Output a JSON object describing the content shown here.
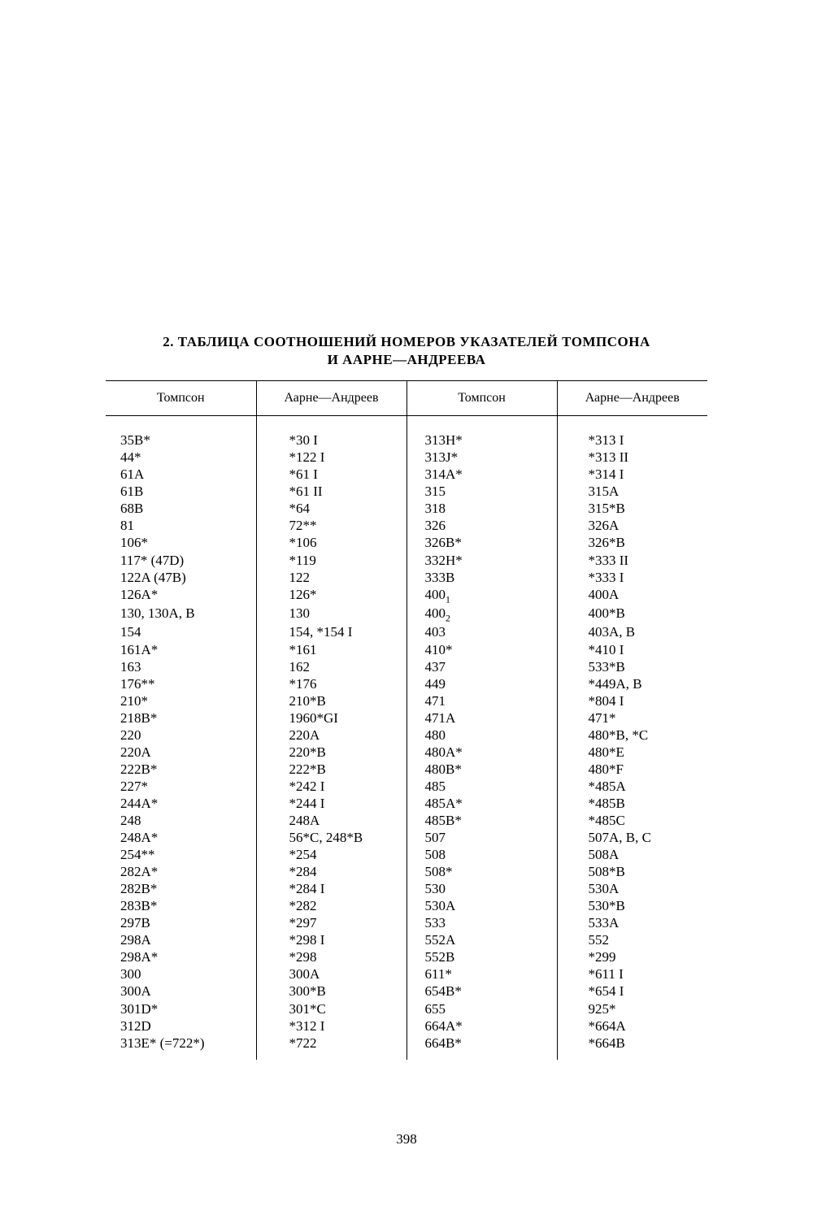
{
  "title_line1": "2.  ТАБЛИЦА  СООТНОШЕНИЙ  НОМЕРОВ  УКАЗАТЕЛЕЙ  ТОМПСОНА",
  "title_line2": "И  ААРНЕ—АНДРЕЕВА",
  "headers": {
    "col1": "Томпсон",
    "col2": "Аарне—Андреев",
    "col3": "Томпсон",
    "col4": "Аарне—Андреев"
  },
  "rows": [
    {
      "t1": "35B*",
      "a1": "*30 I",
      "t2": "313H*",
      "a2": "*313 I"
    },
    {
      "t1": "44*",
      "a1": "*122 I",
      "t2": "313J*",
      "a2": "*313 II"
    },
    {
      "t1": "61A",
      "a1": "*61 I",
      "t2": "314A*",
      "a2": "*314 I"
    },
    {
      "t1": "61B",
      "a1": "*61 II",
      "t2": "315",
      "a2": "315A"
    },
    {
      "t1": "68B",
      "a1": "*64",
      "t2": "318",
      "a2": "315*B"
    },
    {
      "t1": "81",
      "a1": "72**",
      "t2": "326",
      "a2": "326A"
    },
    {
      "t1": "106*",
      "a1": "*106",
      "t2": "326B*",
      "a2": "326*B"
    },
    {
      "t1": "117* (47D)",
      "a1": "*119",
      "t2": "332H*",
      "a2": "*333 II"
    },
    {
      "t1": "122A (47B)",
      "a1": "122",
      "t2": "333B",
      "a2": "*333 I"
    },
    {
      "t1": "126A*",
      "a1": "126*",
      "t2": "400₁",
      "a2": "400A"
    },
    {
      "t1": "130, 130A, B",
      "a1": "130",
      "t2": "400₂",
      "a2": "400*B"
    },
    {
      "t1": "154",
      "a1": "154, *154 I",
      "t2": "403",
      "a2": "403A, B"
    },
    {
      "t1": "161A*",
      "a1": "*161",
      "t2": "410*",
      "a2": "*410 I"
    },
    {
      "t1": "163",
      "a1": "162",
      "t2": "437",
      "a2": "533*B"
    },
    {
      "t1": "176**",
      "a1": "*176",
      "t2": "449",
      "a2": "*449A, B"
    },
    {
      "t1": "210*",
      "a1": "210*B",
      "t2": "471",
      "a2": "*804 I"
    },
    {
      "t1": "218B*",
      "a1": "1960*GI",
      "t2": "471A",
      "a2": "471*"
    },
    {
      "t1": "220",
      "a1": "220A",
      "t2": "480",
      "a2": "480*B, *C"
    },
    {
      "t1": "220A",
      "a1": "220*B",
      "t2": "480A*",
      "a2": "480*E"
    },
    {
      "t1": "222B*",
      "a1": "222*B",
      "t2": "480B*",
      "a2": "480*F"
    },
    {
      "t1": "227*",
      "a1": "*242 I",
      "t2": "485",
      "a2": "*485A"
    },
    {
      "t1": "244A*",
      "a1": "*244 I",
      "t2": "485A*",
      "a2": "*485B"
    },
    {
      "t1": "248",
      "a1": "248A",
      "t2": "485B*",
      "a2": "*485C"
    },
    {
      "t1": "248A*",
      "a1": "56*C, 248*B",
      "t2": "507",
      "a2": "507A, B, C"
    },
    {
      "t1": "254**",
      "a1": "*254",
      "t2": "508",
      "a2": "508A"
    },
    {
      "t1": "282A*",
      "a1": "*284",
      "t2": "508*",
      "a2": "508*B"
    },
    {
      "t1": "282B*",
      "a1": "*284 I",
      "t2": "530",
      "a2": "530A"
    },
    {
      "t1": "283B*",
      "a1": "*282",
      "t2": "530A",
      "a2": "530*B"
    },
    {
      "t1": "297B",
      "a1": "*297",
      "t2": "533",
      "a2": "533A"
    },
    {
      "t1": "298A",
      "a1": "*298 I",
      "t2": "552A",
      "a2": "552"
    },
    {
      "t1": "298A*",
      "a1": "*298",
      "t2": "552B",
      "a2": "*299"
    },
    {
      "t1": "300",
      "a1": "300A",
      "t2": "611*",
      "a2": "*611 I"
    },
    {
      "t1": "300A",
      "a1": "300*B",
      "t2": "654B*",
      "a2": "*654 I"
    },
    {
      "t1": "301D*",
      "a1": "301*C",
      "t2": "655",
      "a2": "925*"
    },
    {
      "t1": "312D",
      "a1": "*312 I",
      "t2": "664A*",
      "a2": "*664A"
    },
    {
      "t1": "313E* (=722*)",
      "a1": "*722",
      "t2": "664B*",
      "a2": "*664B"
    }
  ],
  "page_number": "398"
}
